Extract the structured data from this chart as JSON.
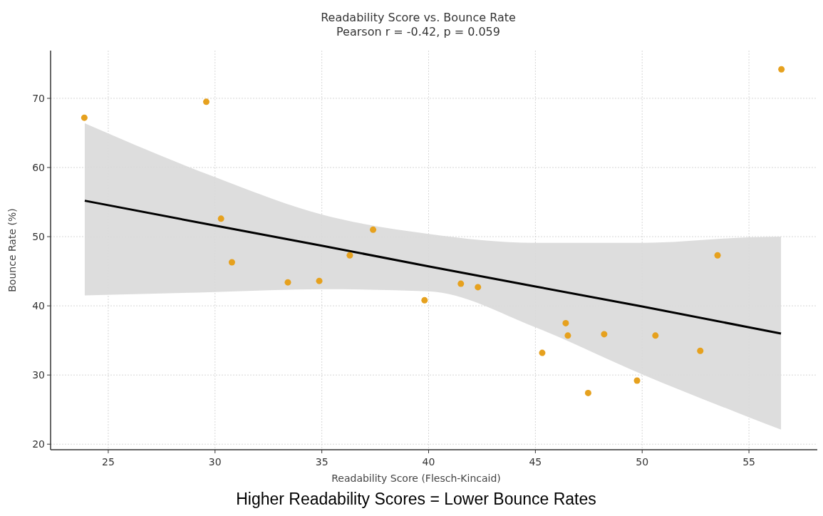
{
  "chart_data": {
    "type": "scatter",
    "title": "Readability Score vs. Bounce Rate",
    "subtitle": "Pearson r = -0.42, p = 0.059",
    "xlabel": "Readability Score (Flesch-Kincaid)",
    "ylabel": "Bounce Rate (%)",
    "annotations": [
      "Higher Readability Scores = Lower Bounce Rates"
    ],
    "series": [
      {
        "marker": "circle",
        "color": "#e6a11e",
        "x": [
          23.88,
          29.59,
          30.28,
          30.79,
          33.41,
          34.88,
          36.31,
          37.4,
          39.81,
          41.51,
          42.31,
          45.32,
          46.42,
          46.52,
          47.47,
          48.22,
          49.76,
          50.62,
          52.72,
          53.53,
          56.52
        ],
        "values": [
          67.2,
          69.5,
          52.6,
          46.3,
          43.4,
          43.6,
          47.3,
          51.0,
          40.8,
          43.2,
          42.7,
          33.2,
          37.5,
          35.7,
          27.4,
          35.9,
          29.2,
          35.7,
          33.5,
          47.3,
          74.2
        ]
      },
      {
        "type": "line",
        "color": "#000000",
        "x": [
          23.9,
          30,
          35,
          40,
          45,
          50,
          55,
          56.5
        ],
        "values": [
          55.2,
          51.6,
          48.7,
          45.7,
          42.8,
          39.9,
          36.9,
          36.0
        ],
        "lower": [
          41.5,
          42.0,
          42.4,
          42.1,
          36.9,
          30.1,
          23.9,
          22.1
        ],
        "upper": [
          66.4,
          58.6,
          53.2,
          50.4,
          49.1,
          49.1,
          49.9,
          50.0
        ]
      }
    ],
    "xlim": [
      22.3,
      58.2
    ],
    "xticks": [
      25,
      30,
      35,
      40,
      45,
      50,
      55
    ],
    "ylim": [
      19.2,
      76.9
    ],
    "yticks": [
      20,
      30,
      40,
      50,
      60,
      70
    ],
    "grid": true
  }
}
